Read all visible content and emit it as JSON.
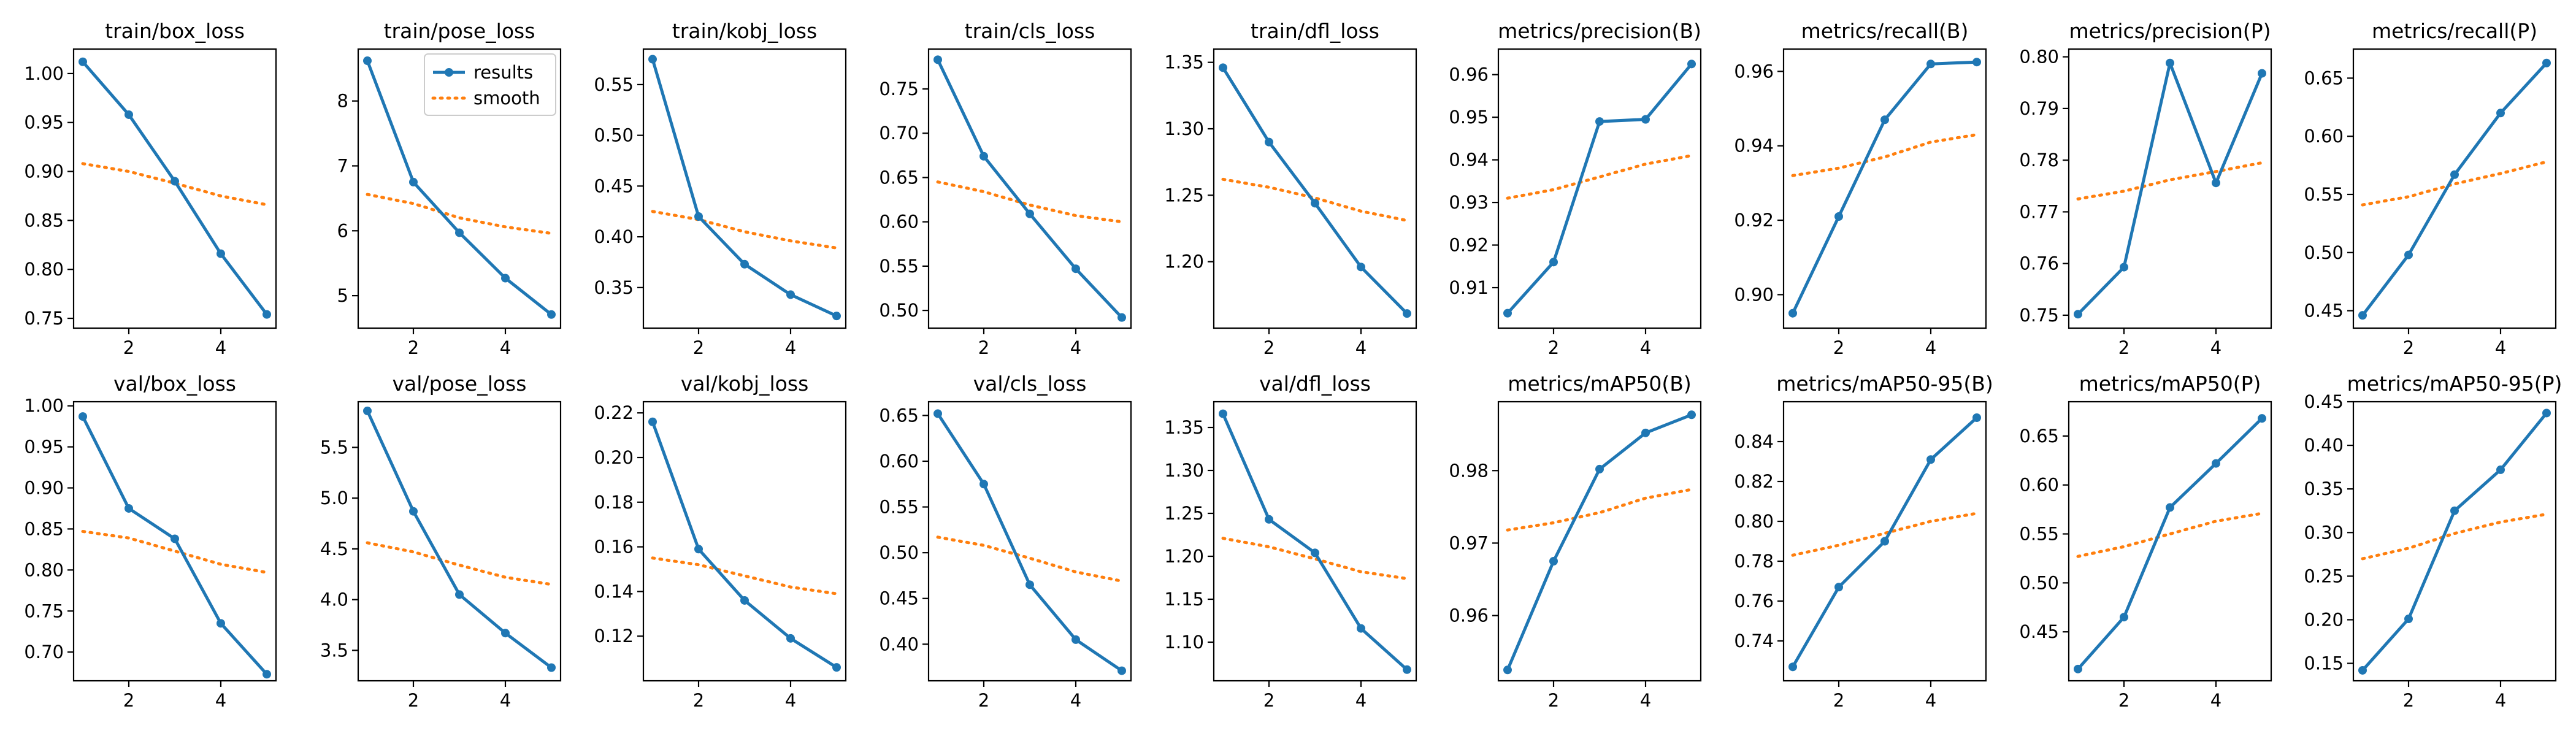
{
  "colors": {
    "results": "#1f77b4",
    "smooth": "#ff7f0e"
  },
  "legend": {
    "panel": "train/pose_loss",
    "placement": "upper right",
    "items": [
      "results",
      "smooth"
    ]
  },
  "chart_data": [
    {
      "type": "line",
      "title": "train/box_loss",
      "x": [
        1,
        2,
        3,
        4,
        5
      ],
      "ylim": [
        0.74,
        1.025
      ],
      "xticks": [
        2,
        4
      ],
      "xtick_labels": [
        "2",
        "4"
      ],
      "yticks": [
        0.75,
        0.8,
        0.85,
        0.9,
        0.95,
        1.0
      ],
      "ytick_labels": [
        "0.75",
        "0.80",
        "0.85",
        "0.90",
        "0.95",
        "1.00"
      ],
      "series": [
        {
          "name": "results",
          "values": [
            1.012,
            0.958,
            0.89,
            0.816,
            0.754
          ]
        },
        {
          "name": "smooth",
          "values": [
            0.908,
            0.9,
            0.888,
            0.875,
            0.866
          ]
        }
      ]
    },
    {
      "type": "line",
      "title": "train/pose_loss",
      "x": [
        1,
        2,
        3,
        4,
        5
      ],
      "ylim": [
        4.5,
        8.8
      ],
      "xticks": [
        2,
        4
      ],
      "xtick_labels": [
        "2",
        "4"
      ],
      "yticks": [
        5,
        6,
        7,
        8
      ],
      "ytick_labels": [
        "5",
        "6",
        "7",
        "8"
      ],
      "series": [
        {
          "name": "results",
          "values": [
            8.62,
            6.75,
            5.97,
            5.27,
            4.71
          ]
        },
        {
          "name": "smooth",
          "values": [
            6.56,
            6.42,
            6.2,
            6.06,
            5.96
          ]
        }
      ]
    },
    {
      "type": "line",
      "title": "train/kobj_loss",
      "x": [
        1,
        2,
        3,
        4,
        5
      ],
      "ylim": [
        0.31,
        0.585
      ],
      "xticks": [
        2,
        4
      ],
      "xtick_labels": [
        "2",
        "4"
      ],
      "yticks": [
        0.35,
        0.4,
        0.45,
        0.5,
        0.55
      ],
      "ytick_labels": [
        "0.35",
        "0.40",
        "0.45",
        "0.50",
        "0.55"
      ],
      "series": [
        {
          "name": "results",
          "values": [
            0.575,
            0.42,
            0.373,
            0.343,
            0.322
          ]
        },
        {
          "name": "smooth",
          "values": [
            0.425,
            0.417,
            0.405,
            0.396,
            0.389
          ]
        }
      ]
    },
    {
      "type": "line",
      "title": "train/cls_loss",
      "x": [
        1,
        2,
        3,
        4,
        5
      ],
      "ylim": [
        0.48,
        0.795
      ],
      "xticks": [
        2,
        4
      ],
      "xtick_labels": [
        "2",
        "4"
      ],
      "yticks": [
        0.5,
        0.55,
        0.6,
        0.65,
        0.7,
        0.75
      ],
      "ytick_labels": [
        "0.50",
        "0.55",
        "0.60",
        "0.65",
        "0.70",
        "0.75"
      ],
      "series": [
        {
          "name": "results",
          "values": [
            0.783,
            0.674,
            0.609,
            0.547,
            0.492
          ]
        },
        {
          "name": "smooth",
          "values": [
            0.645,
            0.634,
            0.619,
            0.607,
            0.6
          ]
        }
      ]
    },
    {
      "type": "line",
      "title": "train/dfl_loss",
      "x": [
        1,
        2,
        3,
        4,
        5
      ],
      "ylim": [
        1.15,
        1.36
      ],
      "xticks": [
        2,
        4
      ],
      "xtick_labels": [
        "2",
        "4"
      ],
      "yticks": [
        1.2,
        1.25,
        1.3,
        1.35
      ],
      "ytick_labels": [
        "1.20",
        "1.25",
        "1.30",
        "1.35"
      ],
      "series": [
        {
          "name": "results",
          "values": [
            1.346,
            1.29,
            1.244,
            1.196,
            1.161
          ]
        },
        {
          "name": "smooth",
          "values": [
            1.262,
            1.256,
            1.248,
            1.238,
            1.231
          ]
        }
      ]
    },
    {
      "type": "line",
      "title": "metrics/precision(B)",
      "x": [
        1,
        2,
        3,
        4,
        5
      ],
      "ylim": [
        0.9005,
        0.966
      ],
      "xticks": [
        2,
        4
      ],
      "xtick_labels": [
        "2",
        "4"
      ],
      "yticks": [
        0.91,
        0.92,
        0.93,
        0.94,
        0.95,
        0.96
      ],
      "ytick_labels": [
        "0.91",
        "0.92",
        "0.93",
        "0.94",
        "0.95",
        "0.96"
      ],
      "series": [
        {
          "name": "results",
          "values": [
            0.904,
            0.916,
            0.949,
            0.9495,
            0.9625
          ]
        },
        {
          "name": "smooth",
          "values": [
            0.931,
            0.933,
            0.936,
            0.939,
            0.941
          ]
        }
      ]
    },
    {
      "type": "line",
      "title": "metrics/recall(B)",
      "x": [
        1,
        2,
        3,
        4,
        5
      ],
      "ylim": [
        0.891,
        0.966
      ],
      "xticks": [
        2,
        4
      ],
      "xtick_labels": [
        "2",
        "4"
      ],
      "yticks": [
        0.9,
        0.92,
        0.94,
        0.96
      ],
      "ytick_labels": [
        "0.90",
        "0.92",
        "0.94",
        "0.96"
      ],
      "series": [
        {
          "name": "results",
          "values": [
            0.895,
            0.921,
            0.947,
            0.962,
            0.9625
          ]
        },
        {
          "name": "smooth",
          "values": [
            0.932,
            0.934,
            0.937,
            0.941,
            0.943
          ]
        }
      ]
    },
    {
      "type": "line",
      "title": "metrics/precision(P)",
      "x": [
        1,
        2,
        3,
        4,
        5
      ],
      "ylim": [
        0.7475,
        0.8015
      ],
      "xticks": [
        2,
        4
      ],
      "xtick_labels": [
        "2",
        "4"
      ],
      "yticks": [
        0.75,
        0.76,
        0.77,
        0.78,
        0.79,
        0.8
      ],
      "ytick_labels": [
        "0.75",
        "0.76",
        "0.77",
        "0.78",
        "0.79",
        "0.80"
      ],
      "series": [
        {
          "name": "results",
          "values": [
            0.7502,
            0.7593,
            0.7988,
            0.7756,
            0.7968
          ]
        },
        {
          "name": "smooth",
          "values": [
            0.7725,
            0.774,
            0.7762,
            0.7778,
            0.7795
          ]
        }
      ]
    },
    {
      "type": "line",
      "title": "metrics/recall(P)",
      "x": [
        1,
        2,
        3,
        4,
        5
      ],
      "ylim": [
        0.435,
        0.675
      ],
      "xticks": [
        2,
        4
      ],
      "xtick_labels": [
        "2",
        "4"
      ],
      "yticks": [
        0.45,
        0.5,
        0.55,
        0.6,
        0.65
      ],
      "ytick_labels": [
        "0.45",
        "0.50",
        "0.55",
        "0.60",
        "0.65"
      ],
      "series": [
        {
          "name": "results",
          "values": [
            0.446,
            0.498,
            0.567,
            0.62,
            0.663
          ]
        },
        {
          "name": "smooth",
          "values": [
            0.541,
            0.548,
            0.559,
            0.568,
            0.578
          ]
        }
      ]
    },
    {
      "type": "line",
      "title": "val/box_loss",
      "x": [
        1,
        2,
        3,
        4,
        5
      ],
      "ylim": [
        0.665,
        1.005
      ],
      "xticks": [
        2,
        4
      ],
      "xtick_labels": [
        "2",
        "4"
      ],
      "yticks": [
        0.7,
        0.75,
        0.8,
        0.85,
        0.9,
        0.95,
        1.0
      ],
      "ytick_labels": [
        "0.70",
        "0.75",
        "0.80",
        "0.85",
        "0.90",
        "0.95",
        "1.00"
      ],
      "series": [
        {
          "name": "results",
          "values": [
            0.987,
            0.875,
            0.838,
            0.735,
            0.673
          ]
        },
        {
          "name": "smooth",
          "values": [
            0.847,
            0.839,
            0.823,
            0.807,
            0.797
          ]
        }
      ]
    },
    {
      "type": "line",
      "title": "val/pose_loss",
      "x": [
        1,
        2,
        3,
        4,
        5
      ],
      "ylim": [
        3.2,
        5.95
      ],
      "xticks": [
        2,
        4
      ],
      "xtick_labels": [
        "2",
        "4"
      ],
      "yticks": [
        3.5,
        4.0,
        4.5,
        5.0,
        5.5
      ],
      "ytick_labels": [
        "3.5",
        "4.0",
        "4.5",
        "5.0",
        "5.5"
      ],
      "series": [
        {
          "name": "results",
          "values": [
            5.86,
            4.87,
            4.05,
            3.67,
            3.33
          ]
        },
        {
          "name": "smooth",
          "values": [
            4.56,
            4.47,
            4.34,
            4.22,
            4.15
          ]
        }
      ]
    },
    {
      "type": "line",
      "title": "val/kobj_loss",
      "x": [
        1,
        2,
        3,
        4,
        5
      ],
      "ylim": [
        0.1,
        0.225
      ],
      "xticks": [
        2,
        4
      ],
      "xtick_labels": [
        "2",
        "4"
      ],
      "yticks": [
        0.12,
        0.14,
        0.16,
        0.18,
        0.2,
        0.22
      ],
      "ytick_labels": [
        "0.12",
        "0.14",
        "0.16",
        "0.18",
        "0.20",
        "0.22"
      ],
      "series": [
        {
          "name": "results",
          "values": [
            0.216,
            0.159,
            0.136,
            0.119,
            0.106
          ]
        },
        {
          "name": "smooth",
          "values": [
            0.155,
            0.152,
            0.147,
            0.142,
            0.139
          ]
        }
      ]
    },
    {
      "type": "line",
      "title": "val/cls_loss",
      "x": [
        1,
        2,
        3,
        4,
        5
      ],
      "ylim": [
        0.36,
        0.665
      ],
      "xticks": [
        2,
        4
      ],
      "xtick_labels": [
        "2",
        "4"
      ],
      "yticks": [
        0.4,
        0.45,
        0.5,
        0.55,
        0.6,
        0.65
      ],
      "ytick_labels": [
        "0.40",
        "0.45",
        "0.50",
        "0.55",
        "0.60",
        "0.65"
      ],
      "series": [
        {
          "name": "results",
          "values": [
            0.652,
            0.575,
            0.465,
            0.405,
            0.371
          ]
        },
        {
          "name": "smooth",
          "values": [
            0.517,
            0.508,
            0.494,
            0.479,
            0.469
          ]
        }
      ]
    },
    {
      "type": "line",
      "title": "val/dfl_loss",
      "x": [
        1,
        2,
        3,
        4,
        5
      ],
      "ylim": [
        1.055,
        1.38
      ],
      "xticks": [
        2,
        4
      ],
      "xtick_labels": [
        "2",
        "4"
      ],
      "yticks": [
        1.1,
        1.15,
        1.2,
        1.25,
        1.3,
        1.35
      ],
      "ytick_labels": [
        "1.10",
        "1.15",
        "1.20",
        "1.25",
        "1.30",
        "1.35"
      ],
      "series": [
        {
          "name": "results",
          "values": [
            1.366,
            1.243,
            1.204,
            1.116,
            1.068
          ]
        },
        {
          "name": "smooth",
          "values": [
            1.221,
            1.211,
            1.197,
            1.182,
            1.174
          ]
        }
      ]
    },
    {
      "type": "line",
      "title": "metrics/mAP50(B)",
      "x": [
        1,
        2,
        3,
        4,
        5
      ],
      "ylim": [
        0.951,
        0.9895
      ],
      "xticks": [
        2,
        4
      ],
      "xtick_labels": [
        "2",
        "4"
      ],
      "yticks": [
        0.96,
        0.97,
        0.98
      ],
      "ytick_labels": [
        "0.96",
        "0.97",
        "0.98"
      ],
      "series": [
        {
          "name": "results",
          "values": [
            0.9525,
            0.9675,
            0.9802,
            0.9852,
            0.9877
          ]
        },
        {
          "name": "smooth",
          "values": [
            0.9718,
            0.9728,
            0.9742,
            0.9762,
            0.9774
          ]
        }
      ]
    },
    {
      "type": "line",
      "title": "metrics/mAP50-95(B)",
      "x": [
        1,
        2,
        3,
        4,
        5
      ],
      "ylim": [
        0.72,
        0.86
      ],
      "xticks": [
        2,
        4
      ],
      "xtick_labels": [
        "2",
        "4"
      ],
      "yticks": [
        0.74,
        0.76,
        0.78,
        0.8,
        0.82,
        0.84
      ],
      "ytick_labels": [
        "0.74",
        "0.76",
        "0.78",
        "0.80",
        "0.82",
        "0.84"
      ],
      "series": [
        {
          "name": "results",
          "values": [
            0.727,
            0.767,
            0.79,
            0.831,
            0.852
          ]
        },
        {
          "name": "smooth",
          "values": [
            0.783,
            0.788,
            0.794,
            0.8,
            0.804
          ]
        }
      ]
    },
    {
      "type": "line",
      "title": "metrics/mAP50(P)",
      "x": [
        1,
        2,
        3,
        4,
        5
      ],
      "ylim": [
        0.4,
        0.685
      ],
      "xticks": [
        2,
        4
      ],
      "xtick_labels": [
        "2",
        "4"
      ],
      "yticks": [
        0.45,
        0.5,
        0.55,
        0.6,
        0.65
      ],
      "ytick_labels": [
        "0.45",
        "0.50",
        "0.55",
        "0.60",
        "0.65"
      ],
      "series": [
        {
          "name": "results",
          "values": [
            0.412,
            0.465,
            0.577,
            0.622,
            0.668
          ]
        },
        {
          "name": "smooth",
          "values": [
            0.527,
            0.537,
            0.55,
            0.563,
            0.571
          ]
        }
      ]
    },
    {
      "type": "line",
      "title": "metrics/mAP50-95(P)",
      "x": [
        1,
        2,
        3,
        4,
        5
      ],
      "ylim": [
        0.13,
        0.45
      ],
      "xticks": [
        2,
        4
      ],
      "xtick_labels": [
        "2",
        "4"
      ],
      "yticks": [
        0.15,
        0.2,
        0.25,
        0.3,
        0.35,
        0.4,
        0.45
      ],
      "ytick_labels": [
        "0.15",
        "0.20",
        "0.25",
        "0.30",
        "0.35",
        "0.40",
        "0.45"
      ],
      "series": [
        {
          "name": "results",
          "values": [
            0.142,
            0.201,
            0.325,
            0.372,
            0.437
          ]
        },
        {
          "name": "smooth",
          "values": [
            0.27,
            0.282,
            0.299,
            0.312,
            0.321
          ]
        }
      ]
    }
  ]
}
